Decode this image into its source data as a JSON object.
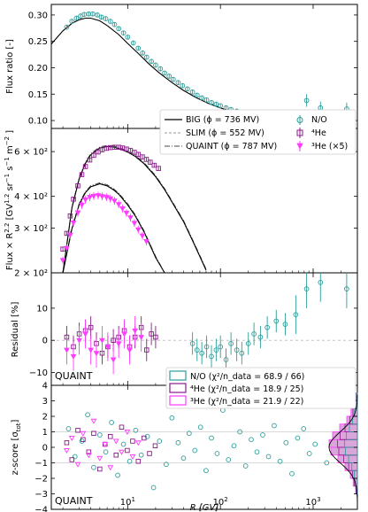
{
  "colors": {
    "no": "#2a9d99",
    "he4": "#8b1a8b",
    "he3": "#ff3cff",
    "model": "#000000",
    "slim": "#999999",
    "he3_fill": "#d9a6d9"
  },
  "xlabel": "R [GV]",
  "x_ticks": [
    {
      "value": 10,
      "label": "10",
      "sup": "1"
    },
    {
      "value": 100,
      "label": "10",
      "sup": "2"
    },
    {
      "value": 1000,
      "label": "10",
      "sup": "3"
    }
  ],
  "chart_data": [
    {
      "type": "line",
      "panel": "flux-ratio",
      "ylabel": "Flux ratio [-]",
      "xlog": true,
      "xlim": [
        1.5,
        3000
      ],
      "ylim": [
        0.085,
        0.32
      ],
      "y_ticks": [
        "0.10",
        "0.15",
        "0.20",
        "0.25",
        "0.30"
      ],
      "y_tick_values": [
        0.1,
        0.15,
        0.2,
        0.25,
        0.3
      ],
      "series": [
        {
          "name": "BIG (ϕ = 736 MV)",
          "style": "solid",
          "x": [
            1.5,
            2,
            2.5,
            3,
            3.5,
            4,
            5,
            6,
            8,
            10,
            13,
            17,
            22,
            30,
            40,
            55,
            75,
            100,
            150,
            200,
            300,
            500,
            800,
            1200,
            2000,
            3000
          ],
          "values": [
            0.245,
            0.27,
            0.284,
            0.291,
            0.294,
            0.294,
            0.289,
            0.28,
            0.263,
            0.246,
            0.227,
            0.207,
            0.19,
            0.172,
            0.157,
            0.143,
            0.132,
            0.124,
            0.114,
            0.108,
            0.102,
            0.096,
            0.091,
            0.088,
            0.084,
            0.082
          ]
        },
        {
          "name": "N/O",
          "style": "errorbar",
          "x": [
            2.2,
            2.5,
            2.8,
            3.1,
            3.4,
            3.8,
            4.2,
            4.7,
            5.2,
            5.8,
            6.5,
            7.2,
            8,
            9,
            10,
            11.5,
            13,
            14.5,
            16,
            18,
            20,
            22.5,
            25,
            28,
            31,
            35,
            39,
            44,
            50,
            56,
            63,
            71,
            80,
            90,
            100,
            115,
            130,
            150,
            170,
            200,
            230,
            270,
            320,
            400,
            500,
            650,
            850,
            1200,
            2300
          ],
          "values": [
            0.277,
            0.288,
            0.294,
            0.298,
            0.301,
            0.302,
            0.302,
            0.3,
            0.296,
            0.293,
            0.288,
            0.282,
            0.274,
            0.266,
            0.258,
            0.247,
            0.237,
            0.228,
            0.22,
            0.212,
            0.205,
            0.198,
            0.19,
            0.184,
            0.178,
            0.172,
            0.166,
            0.16,
            0.154,
            0.148,
            0.143,
            0.139,
            0.134,
            0.131,
            0.128,
            0.124,
            0.121,
            0.118,
            0.115,
            0.112,
            0.11,
            0.107,
            0.106,
            0.104,
            0.103,
            0.101,
            0.138,
            0.124,
            0.122
          ]
        }
      ]
    },
    {
      "type": "line",
      "panel": "flux",
      "ylabel": "Flux × R^2.2 [GV^1.2 sr^-1 s^-1 m^-2 ]",
      "xlog": true,
      "ylog": true,
      "xlim": [
        1.5,
        3000
      ],
      "ylim": [
        200,
        740
      ],
      "y_ticks": [
        "2 × 10²",
        "3 × 10²",
        "4 × 10²",
        "6 × 10²"
      ],
      "y_tick_values": [
        200,
        300,
        400,
        600
      ],
      "legend": {
        "position": "top-right",
        "entries": [
          {
            "label": "BIG (ϕ = 736 MV)",
            "style": "solid"
          },
          {
            "label": "SLIM (ϕ = 552 MV)",
            "style": "dashed"
          },
          {
            "label": "QUAINT (ϕ = 787 MV)",
            "style": "dashdot"
          },
          {
            "label": "N/O",
            "marker": "circle"
          },
          {
            "label": "⁴He",
            "marker": "square"
          },
          {
            "label": "³He (×5)",
            "marker": "triangle-down"
          }
        ]
      },
      "series": [
        {
          "name": "⁴He",
          "x": [
            2,
            2.2,
            2.4,
            2.6,
            2.9,
            3.2,
            3.5,
            3.9,
            4.3,
            4.8,
            5.3,
            5.9,
            6.5,
            7.2,
            8,
            8.8,
            9.7,
            10.7,
            11.8,
            13,
            14.4,
            15.9,
            17.5,
            19.3,
            21.5
          ],
          "values": [
            248,
            286,
            335,
            390,
            440,
            487,
            524,
            556,
            580,
            598,
            610,
            618,
            622,
            624,
            624,
            620,
            614,
            606,
            596,
            585,
            572,
            559,
            545,
            530,
            515
          ]
        },
        {
          "name": "³He (×5)",
          "x": [
            2,
            2.2,
            2.4,
            2.6,
            2.9,
            3.2,
            3.5,
            3.9,
            4.3,
            4.8,
            5.3,
            5.9,
            6.5,
            7.2,
            8,
            8.8,
            9.7,
            10.7,
            11.8,
            13,
            14.4,
            15.9
          ],
          "values": [
            224,
            250,
            282,
            315,
            345,
            370,
            388,
            397,
            401,
            403,
            400,
            397,
            392,
            384,
            372,
            358,
            344,
            330,
            314,
            296,
            280,
            266
          ]
        },
        {
          "name": "BIG ⁴He",
          "style": "solid",
          "x": [
            2,
            2.5,
            3,
            3.5,
            4,
            5,
            6,
            7,
            8,
            10,
            12,
            15,
            20,
            25,
            30,
            40,
            50,
            60,
            70
          ],
          "values": [
            185,
            360,
            470,
            540,
            583,
            620,
            628,
            625,
            617,
            597,
            575,
            538,
            478,
            425,
            380,
            318,
            268,
            232,
            205
          ]
        },
        {
          "name": "BIG ³He",
          "style": "solid",
          "x": [
            2,
            2.5,
            3,
            3.5,
            4,
            5,
            6,
            7,
            8,
            10,
            12,
            15,
            20,
            25
          ],
          "values": [
            185,
            298,
            372,
            414,
            436,
            448,
            440,
            425,
            408,
            370,
            336,
            290,
            230,
            195
          ]
        }
      ]
    },
    {
      "type": "scatter",
      "panel": "residual",
      "ylabel": "Residual [%]",
      "annotation": "QUAINT",
      "xlog": true,
      "xlim": [
        1.5,
        3000
      ],
      "ylim": [
        -14,
        21
      ],
      "y_ticks": [
        "−10",
        "0",
        "10"
      ],
      "y_tick_values": [
        -10,
        0,
        10
      ],
      "series": [
        {
          "name": "N/O",
          "x": [
            50,
            56,
            63,
            71,
            80,
            90,
            100,
            115,
            130,
            150,
            170,
            200,
            230,
            270,
            320,
            400,
            500,
            650,
            850,
            1200,
            2300
          ],
          "values": [
            -1,
            -3,
            -4,
            -2,
            -5,
            -3,
            -2,
            -6,
            -1,
            -3,
            -4,
            -1,
            2,
            1,
            4,
            6,
            5,
            8,
            16,
            18,
            16
          ]
        },
        {
          "name": "⁴He",
          "x": [
            2.2,
            2.6,
            3,
            3.5,
            4,
            4.6,
            5.3,
            6.1,
            7,
            8,
            9.2,
            10.5,
            12,
            14,
            16,
            18,
            20
          ],
          "values": [
            1,
            -2,
            2,
            3,
            4,
            -1,
            -4,
            -2,
            0,
            1,
            3,
            -2,
            1,
            4,
            -3,
            2,
            1
          ]
        },
        {
          "name": "³He (×5)",
          "x": [
            2.2,
            2.6,
            3,
            3.5,
            4,
            4.6,
            5.3,
            6.1,
            7,
            8,
            9.2,
            10.5,
            12,
            14
          ],
          "values": [
            -3,
            -5,
            0,
            2,
            -3,
            -4,
            0,
            -2,
            -6,
            -1,
            2,
            -3,
            3,
            1
          ]
        }
      ]
    },
    {
      "type": "scatter",
      "panel": "z-score",
      "ylabel": "z-score [σ_tot]",
      "annotation": "QUAINT",
      "xlog": true,
      "xlim": [
        1.5,
        3000
      ],
      "ylim": [
        -4,
        4
      ],
      "y_ticks": [
        "−4",
        "−3",
        "−2",
        "−1",
        "0",
        "1",
        "2",
        "3",
        "4"
      ],
      "y_tick_values": [
        -4,
        -3,
        -2,
        -1,
        0,
        1,
        2,
        3,
        4
      ],
      "legend": {
        "position": "top-right",
        "entries": [
          {
            "label": "N/O (χ²/n_data = 68.9 / 66)"
          },
          {
            "label": "⁴He (χ²/n_data = 18.9 / 25)"
          },
          {
            "label": "³He (χ²/n_data = 21.9 / 22)"
          }
        ]
      },
      "series": [
        {
          "name": "N/O",
          "x": [
            2.3,
            2.7,
            3.2,
            3.7,
            4.3,
            5,
            5.8,
            6.7,
            7.8,
            9,
            10.5,
            12.2,
            14,
            16.3,
            19,
            22,
            26,
            30,
            35,
            40,
            46,
            53,
            61,
            70,
            80,
            92,
            106,
            122,
            140,
            162,
            187,
            215,
            248,
            286,
            330,
            380,
            440,
            510,
            590,
            680,
            790,
            910,
            1050,
            1400,
            2000
          ],
          "values": [
            1.2,
            -0.6,
            0.4,
            2.1,
            -1.3,
            0.8,
            -0.3,
            1.6,
            -1.8,
            0.2,
            -0.9,
            1.1,
            -0.5,
            0.7,
            -2.6,
            0.4,
            -1.1,
            1.9,
            0.3,
            -0.7,
            0.9,
            -0.2,
            1.3,
            -1.5,
            0.6,
            -0.4,
            2.4,
            -0.8,
            0.1,
            1.0,
            -1.2,
            0.5,
            -0.3,
            0.8,
            -0.6,
            1.4,
            -0.9,
            0.3,
            -1.7,
            0.6,
            1.2,
            -0.4,
            0.2,
            -1.0,
            0.5
          ]
        },
        {
          "name": "⁴He",
          "x": [
            2.2,
            2.5,
            2.9,
            3.3,
            3.8,
            4.3,
            5,
            5.7,
            6.5,
            7.5,
            8.6,
            9.9,
            11.3,
            13,
            15,
            17.2,
            19.8
          ],
          "values": [
            0.3,
            -0.8,
            1.1,
            0.5,
            -0.3,
            0.9,
            -1.4,
            0.2,
            0.7,
            -0.5,
            1.3,
            -0.2,
            0.4,
            -0.9,
            0.6,
            -0.4,
            0.1
          ]
        },
        {
          "name": "³He (×5)",
          "x": [
            2.2,
            2.5,
            2.9,
            3.3,
            3.8,
            4.3,
            5,
            5.7,
            6.5,
            7.5,
            8.6,
            9.9,
            11.3,
            13
          ],
          "values": [
            -0.2,
            0.6,
            -1.1,
            0.9,
            -0.5,
            1.7,
            -0.7,
            0.2,
            -1.3,
            0.4,
            -0.3,
            1.0,
            -0.6,
            0.3
          ]
        }
      ]
    }
  ]
}
